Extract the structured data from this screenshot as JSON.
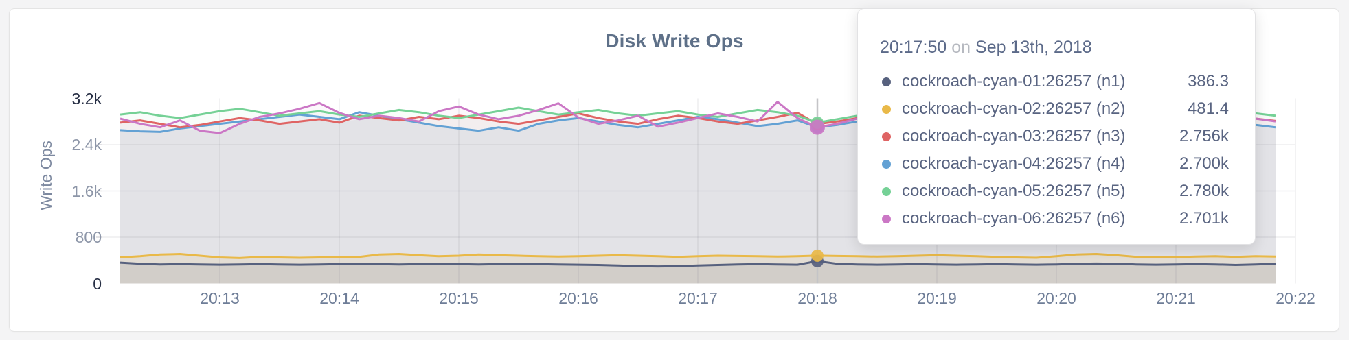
{
  "title": "Disk Write Ops",
  "y_axis": {
    "label": "Write Ops"
  },
  "tooltip": {
    "time": "20:17:50",
    "conjunction": "on",
    "date": "Sep 13th, 2018",
    "rows": [
      {
        "name": "cockroach-cyan-01:26257 (n1)",
        "value": "386.3",
        "color": "#57617e"
      },
      {
        "name": "cockroach-cyan-02:26257 (n2)",
        "value": "481.4",
        "color": "#e9b948"
      },
      {
        "name": "cockroach-cyan-03:26257 (n3)",
        "value": "2.756k",
        "color": "#df6464"
      },
      {
        "name": "cockroach-cyan-04:26257 (n4)",
        "value": "2.700k",
        "color": "#63a1d4"
      },
      {
        "name": "cockroach-cyan-05:26257 (n5)",
        "value": "2.780k",
        "color": "#75d196"
      },
      {
        "name": "cockroach-cyan-06:26257 (n6)",
        "value": "2.701k",
        "color": "#cb77c5"
      }
    ]
  },
  "chart_data": {
    "type": "area",
    "title": "Disk Write Ops",
    "ylabel": "Write Ops",
    "xlabel": "",
    "grid": true,
    "ylim": [
      0,
      3200
    ],
    "start_time": "20:12:10",
    "interval_seconds": 10,
    "x_ticks": [
      "20:13",
      "20:14",
      "20:15",
      "20:16",
      "20:17",
      "20:18",
      "20:19",
      "20:20",
      "20:21",
      "20:22"
    ],
    "y_ticks": [
      {
        "label": "0",
        "value": 0
      },
      {
        "label": "800",
        "value": 800
      },
      {
        "label": "1.6k",
        "value": 1600
      },
      {
        "label": "2.4k",
        "value": 2400
      },
      {
        "label": "3.2k",
        "value": 3200
      }
    ],
    "hover": {
      "time": "20:17:50",
      "date": "Sep 13th, 2018",
      "index": 35
    },
    "colors": {
      "area_base": "#e3e3e7",
      "grid": "rgba(90,95,110,0.11)",
      "crosshair": "#c4c4c7"
    },
    "series": [
      {
        "name": "cockroach-cyan-01:26257 (n1)",
        "color": "#57617e",
        "values": [
          360,
          340,
          330,
          335,
          330,
          325,
          330,
          335,
          330,
          325,
          330,
          335,
          340,
          335,
          330,
          335,
          340,
          335,
          330,
          335,
          340,
          335,
          330,
          325,
          320,
          310,
          300,
          295,
          300,
          310,
          320,
          330,
          335,
          330,
          325,
          386.3,
          340,
          330,
          325,
          330,
          335,
          330,
          325,
          330,
          335,
          330,
          325,
          330,
          340,
          345,
          340,
          330,
          325,
          330,
          335,
          330,
          320,
          330,
          340
        ]
      },
      {
        "name": "cockroach-cyan-02:26257 (n2)",
        "color": "#e9b948",
        "values": [
          450,
          470,
          500,
          510,
          480,
          450,
          440,
          460,
          450,
          445,
          450,
          455,
          460,
          500,
          510,
          490,
          470,
          480,
          500,
          490,
          480,
          470,
          465,
          470,
          480,
          490,
          480,
          470,
          460,
          470,
          480,
          475,
          470,
          465,
          470,
          481.4,
          475,
          470,
          465,
          470,
          480,
          490,
          480,
          470,
          460,
          450,
          445,
          470,
          500,
          510,
          490,
          460,
          450,
          455,
          465,
          470,
          460,
          470,
          465
        ]
      },
      {
        "name": "cockroach-cyan-03:26257 (n3)",
        "color": "#df6464",
        "values": [
          2780,
          2820,
          2760,
          2700,
          2740,
          2800,
          2860,
          2820,
          2760,
          2800,
          2840,
          2780,
          2900,
          2860,
          2820,
          2880,
          2840,
          2900,
          2860,
          2800,
          2760,
          2820,
          2880,
          2940,
          2860,
          2800,
          2760,
          2840,
          2900,
          2860,
          2800,
          2760,
          2820,
          2880,
          2950,
          2756,
          2800,
          2860,
          2900,
          2840,
          2780,
          2820,
          2880,
          2840,
          2800,
          2760,
          2820,
          2860,
          2900,
          2840,
          2790,
          2830,
          2870,
          2820,
          2780,
          2740,
          2800,
          2850,
          2810
        ]
      },
      {
        "name": "cockroach-cyan-04:26257 (n4)",
        "color": "#63a1d4",
        "values": [
          2650,
          2630,
          2620,
          2680,
          2720,
          2760,
          2800,
          2840,
          2880,
          2920,
          2880,
          2840,
          2960,
          2900,
          2840,
          2780,
          2720,
          2680,
          2640,
          2700,
          2640,
          2760,
          2820,
          2860,
          2800,
          2740,
          2700,
          2760,
          2820,
          2880,
          2840,
          2780,
          2720,
          2760,
          2820,
          2700,
          2740,
          2800,
          2860,
          2820,
          2760,
          2700,
          2740,
          2800,
          2840,
          2800,
          2740,
          2780,
          2840,
          2800,
          2760,
          2800,
          2860,
          2820,
          2760,
          2720,
          2680,
          2740,
          2700
        ]
      },
      {
        "name": "cockroach-cyan-05:26257 (n5)",
        "color": "#75d196",
        "values": [
          2920,
          2960,
          2900,
          2860,
          2920,
          2980,
          3020,
          2960,
          2900,
          2940,
          2980,
          2920,
          2880,
          2940,
          3000,
          2960,
          2900,
          2860,
          2920,
          2980,
          3040,
          2980,
          2920,
          2960,
          3000,
          2940,
          2900,
          2940,
          2980,
          2920,
          2880,
          2940,
          3000,
          2960,
          2900,
          2780,
          2840,
          2900,
          2960,
          3020,
          2960,
          2900,
          2940,
          2980,
          2920,
          2880,
          2920,
          2960,
          3000,
          2940,
          2900,
          2940,
          2980,
          2920,
          2880,
          2840,
          2900,
          2940,
          2900
        ]
      },
      {
        "name": "cockroach-cyan-06:26257 (n6)",
        "color": "#cb77c5",
        "values": [
          2850,
          2760,
          2700,
          2820,
          2640,
          2600,
          2760,
          2880,
          2940,
          3020,
          3120,
          2950,
          2840,
          2900,
          2860,
          2800,
          2980,
          3060,
          2920,
          2840,
          2900,
          3000,
          3115,
          2870,
          2760,
          2820,
          2900,
          2710,
          2780,
          2860,
          2940,
          2880,
          2800,
          3140,
          2860,
          2701,
          2760,
          2850,
          2920,
          2860,
          2780,
          2700,
          2850,
          2940,
          2880,
          2820,
          2760,
          2900,
          3040,
          3150,
          2950,
          2840,
          2780,
          2880,
          2820,
          2760,
          2700,
          2850,
          2800
        ]
      }
    ]
  }
}
